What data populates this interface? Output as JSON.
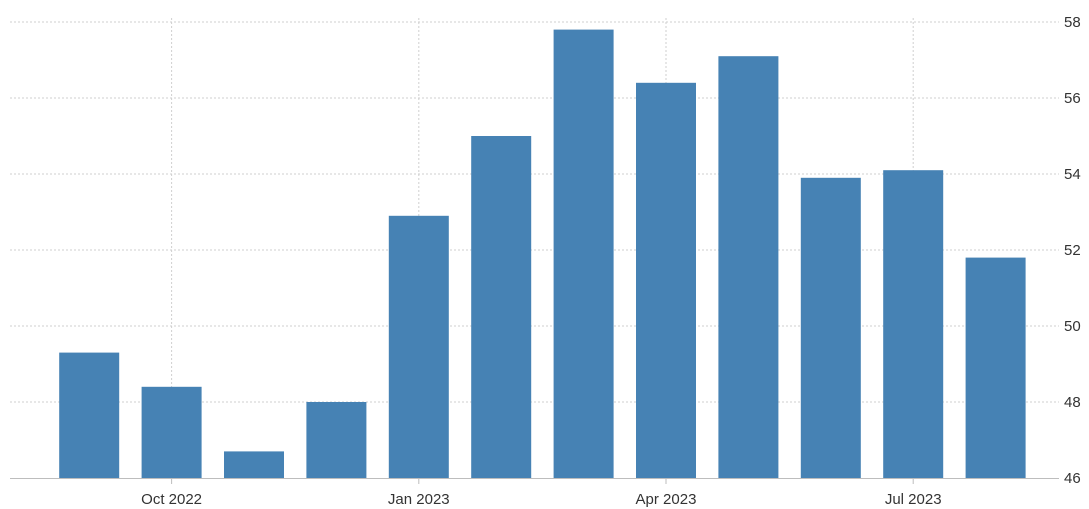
{
  "chart_data": {
    "type": "bar",
    "title": "",
    "xlabel": "",
    "ylabel": "",
    "ylim": [
      46,
      58
    ],
    "y_ticks": [
      46,
      48,
      50,
      52,
      54,
      56,
      58
    ],
    "y_axis_side": "right",
    "grid": true,
    "color": "#4682B4",
    "categories": [
      "Sep 2022",
      "Oct 2022",
      "Nov 2022",
      "Dec 2022",
      "Jan 2023",
      "Feb 2023",
      "Mar 2023",
      "Apr 2023",
      "May 2023",
      "Jun 2023",
      "Jul 2023",
      "Aug 2023"
    ],
    "values": [
      49.3,
      48.4,
      46.7,
      48.0,
      52.9,
      55.0,
      57.8,
      56.4,
      57.1,
      53.9,
      54.1,
      51.8
    ],
    "x_tick_labels": [
      {
        "category": "Oct 2022",
        "label": "Oct 2022"
      },
      {
        "category": "Jan 2023",
        "label": "Jan 2023"
      },
      {
        "category": "Apr 2023",
        "label": "Apr 2023"
      },
      {
        "category": "Jul 2023",
        "label": "Jul 2023"
      }
    ]
  }
}
